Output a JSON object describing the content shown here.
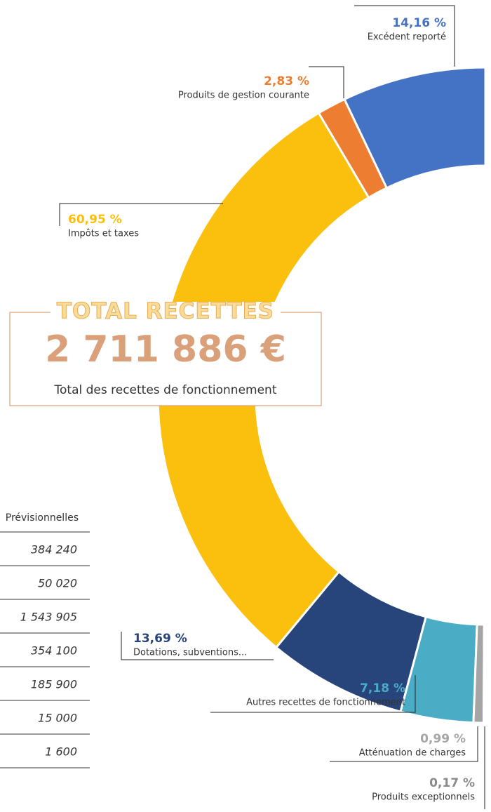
{
  "chart_data": {
    "type": "half-donut",
    "title": "TOTAL RECETTES",
    "total": "2 711 886 €",
    "subtitle": "Total des recettes de fonctionnement",
    "categories": [
      "Excédent reporté",
      "Produits de gestion courante",
      "Impôts et taxes",
      "Dotations, subventions...",
      "Autres recettes de fonctionnement",
      "Atténuation de charges",
      "Produits exceptionnels"
    ],
    "values": [
      14.16,
      2.83,
      60.95,
      13.69,
      7.18,
      0.99,
      0.17
    ],
    "value_labels": [
      "14,16 %",
      "2,83 %",
      "60,95 %",
      "13,69 %",
      "7,18 %",
      "0,99 %",
      "0,17 %"
    ],
    "colors": [
      "#4472c4",
      "#ed7d31",
      "#fbbf0e",
      "#27457a",
      "#4bacc6",
      "#a5a5a5",
      "#8a8a8a"
    ]
  },
  "table": {
    "header": "Prévisionnelles",
    "rows": [
      "384 240",
      "50 020",
      "1 543 905",
      "354 100",
      "185 900",
      "15 000",
      "1 600"
    ]
  }
}
